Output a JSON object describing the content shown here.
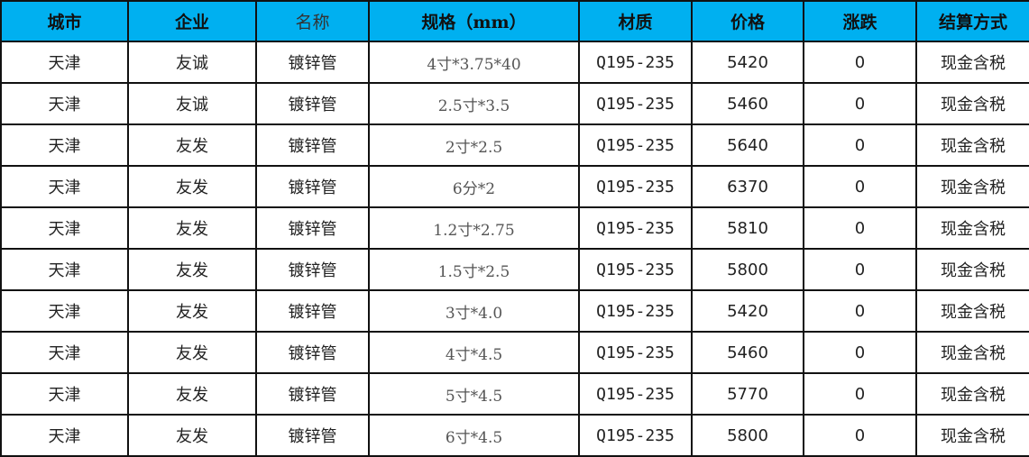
{
  "colors": {
    "header_bg": "#00b0f0"
  },
  "headers": [
    "城市",
    "企业",
    "名称",
    "规格（mm）",
    "材质",
    "价格",
    "涨跌",
    "结算方式"
  ],
  "rows": [
    [
      "天津",
      "友诚",
      "镀锌管",
      "4寸*3.75*40",
      "Q195-235",
      "5420",
      "0",
      "现金含税"
    ],
    [
      "天津",
      "友诚",
      "镀锌管",
      "2.5寸*3.5",
      "Q195-235",
      "5460",
      "0",
      "现金含税"
    ],
    [
      "天津",
      "友发",
      "镀锌管",
      "2寸*2.5",
      "Q195-235",
      "5640",
      "0",
      "现金含税"
    ],
    [
      "天津",
      "友发",
      "镀锌管",
      "6分*2",
      "Q195-235",
      "6370",
      "0",
      "现金含税"
    ],
    [
      "天津",
      "友发",
      "镀锌管",
      "1.2寸*2.75",
      "Q195-235",
      "5810",
      "0",
      "现金含税"
    ],
    [
      "天津",
      "友发",
      "镀锌管",
      "1.5寸*2.5",
      "Q195-235",
      "5800",
      "0",
      "现金含税"
    ],
    [
      "天津",
      "友发",
      "镀锌管",
      "3寸*4.0",
      "Q195-235",
      "5420",
      "0",
      "现金含税"
    ],
    [
      "天津",
      "友发",
      "镀锌管",
      "4寸*4.5",
      "Q195-235",
      "5460",
      "0",
      "现金含税"
    ],
    [
      "天津",
      "友发",
      "镀锌管",
      "5寸*4.5",
      "Q195-235",
      "5770",
      "0",
      "现金含税"
    ],
    [
      "天津",
      "友发",
      "镀锌管",
      "6寸*4.5",
      "Q195-235",
      "5800",
      "0",
      "现金含税"
    ]
  ]
}
